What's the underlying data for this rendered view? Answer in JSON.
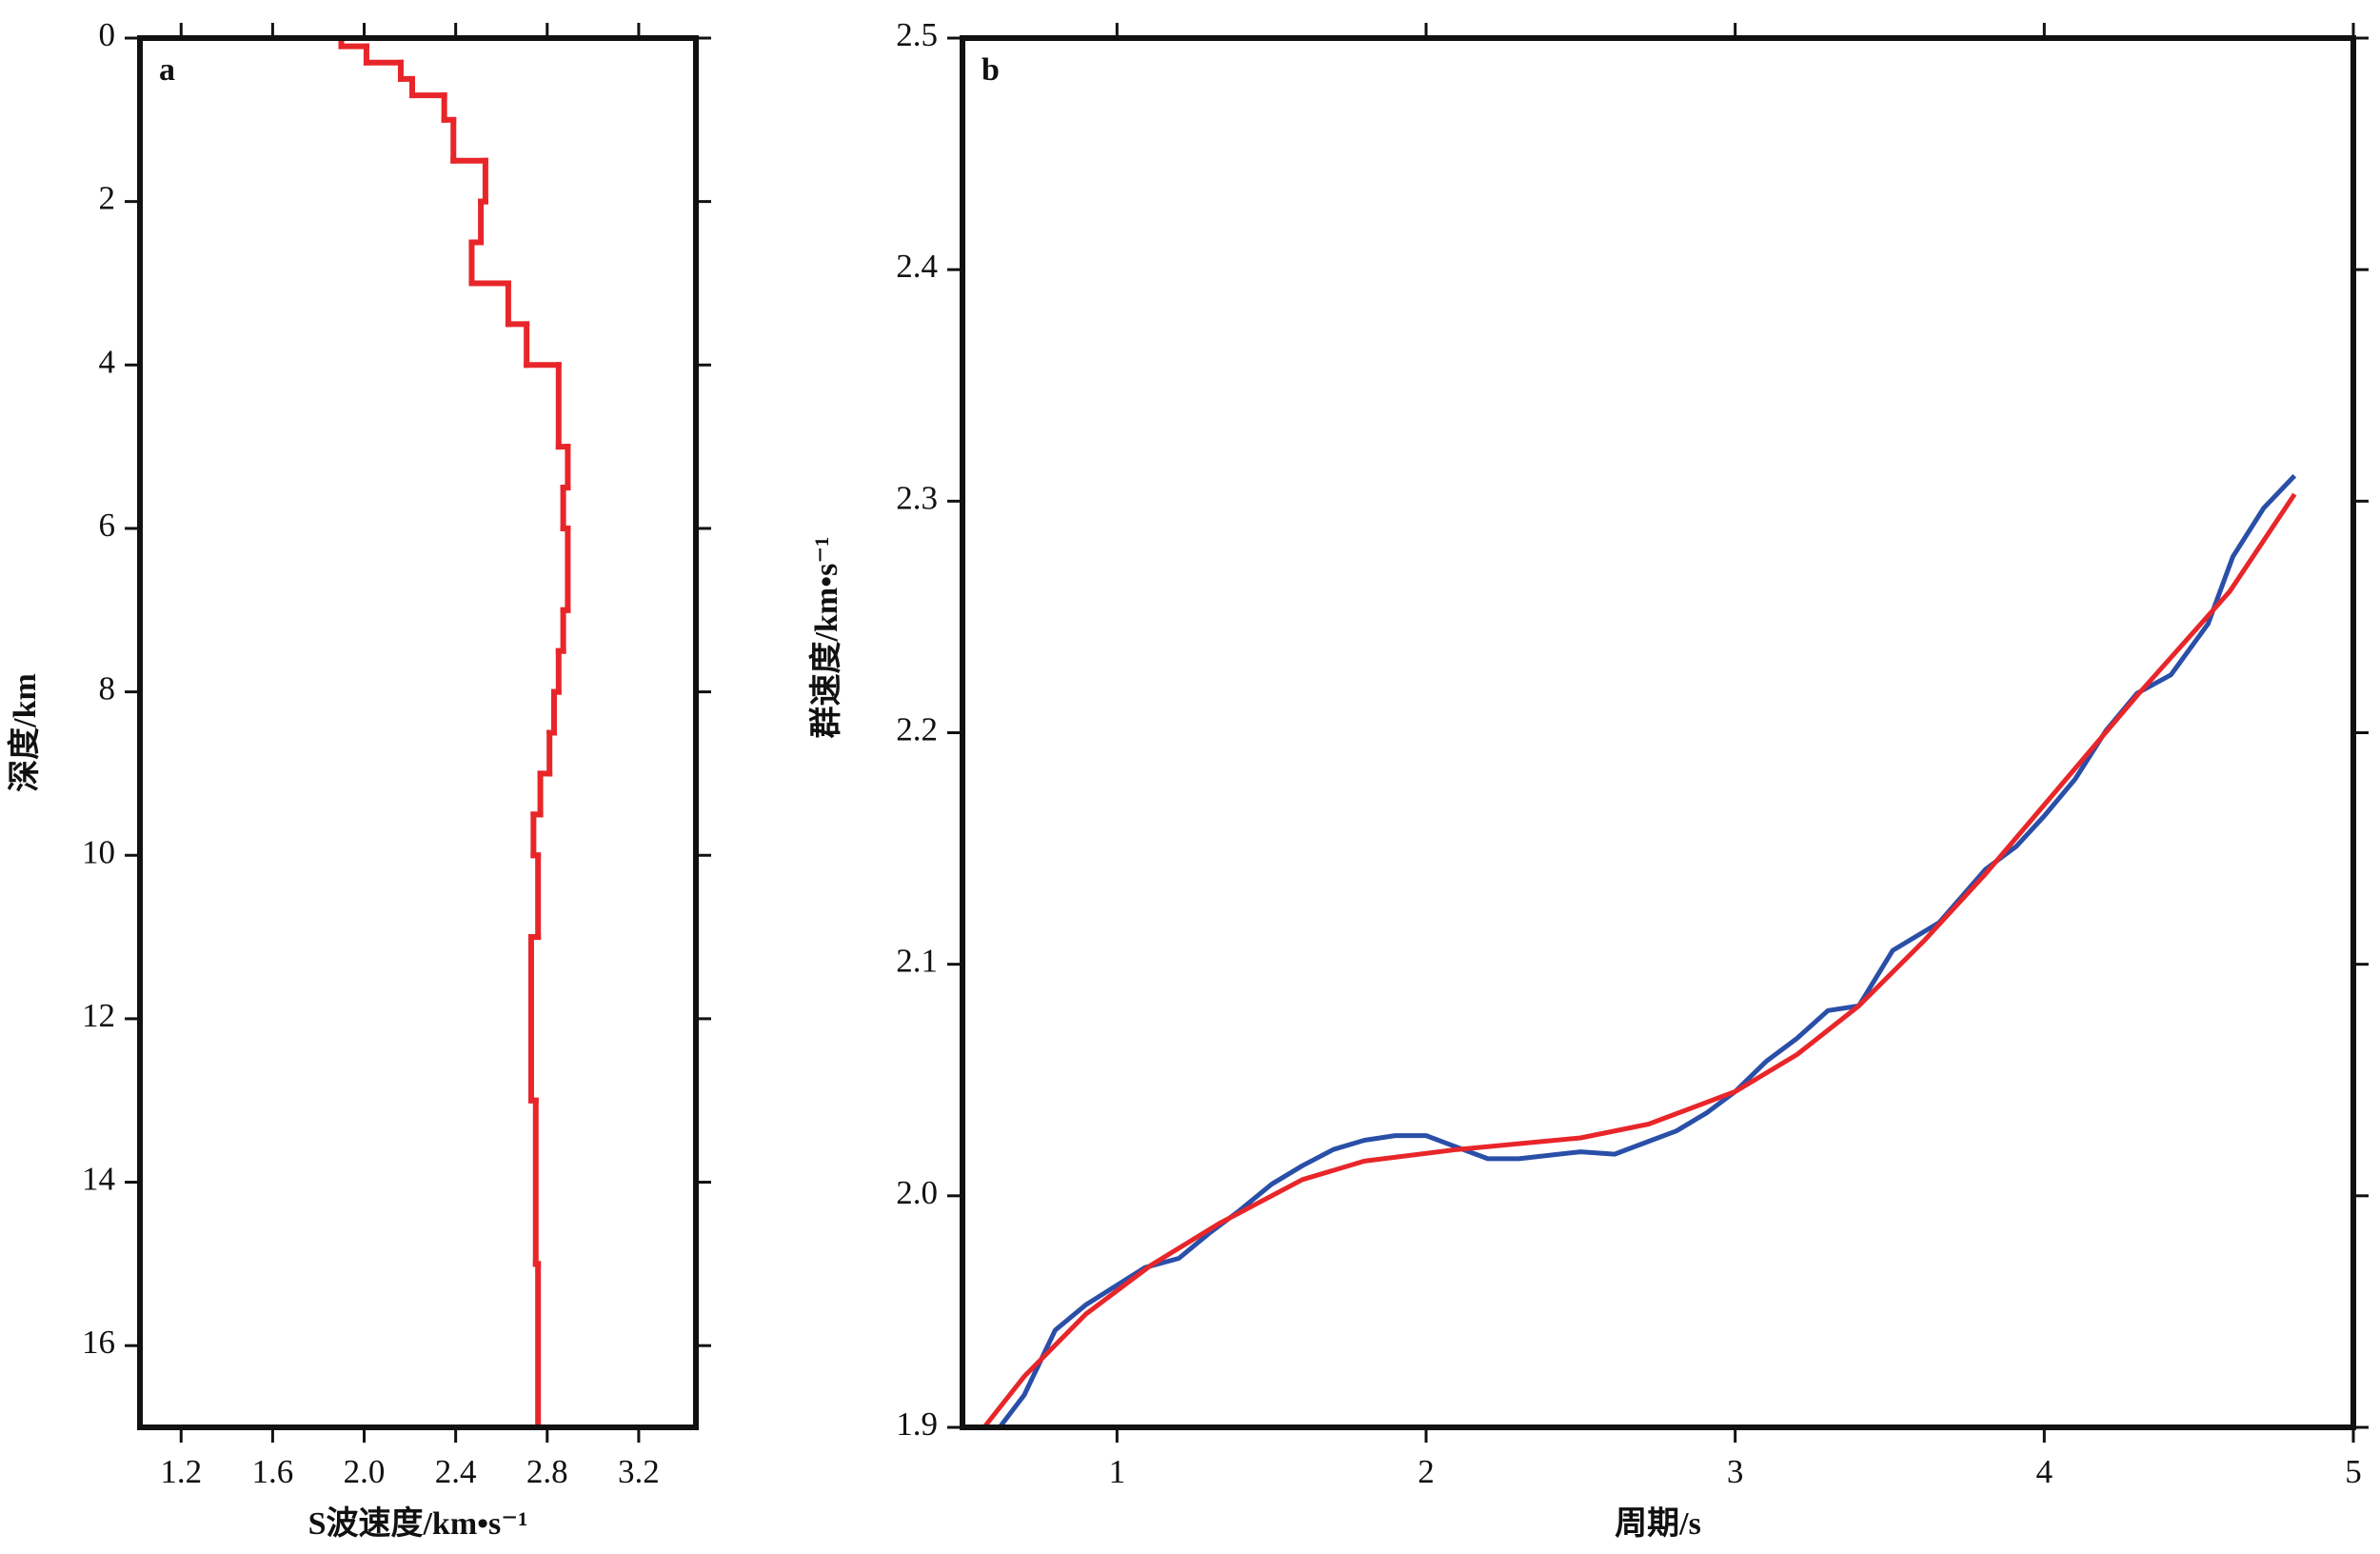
{
  "chart_data": [
    {
      "type": "step",
      "panel_label": "a",
      "xlabel": "S波速度/km•s⁻¹",
      "ylabel": "深度/km",
      "xlim": [
        1.02,
        3.45
      ],
      "xticks": [
        1.2,
        1.6,
        {
          "value": 2.0,
          "label": "2.0"
        },
        2.4,
        2.8,
        3.2
      ],
      "ylim": [
        0,
        17
      ],
      "yticks": [
        0,
        2,
        4,
        6,
        8,
        10,
        12,
        14,
        16
      ],
      "y_inverted": true,
      "series": [
        {
          "color": "#e8262a",
          "depth_edges": [
            0,
            0.1,
            0.3,
            0.5,
            0.7,
            1.0,
            1.5,
            2.0,
            2.5,
            3.0,
            3.5,
            4.0,
            5.0,
            5.5,
            6.0,
            7.0,
            7.5,
            8.0,
            8.5,
            9.0,
            9.5,
            10,
            11,
            13,
            15,
            17
          ],
          "values": [
            1.9,
            2.01,
            2.16,
            2.21,
            2.35,
            2.39,
            2.53,
            2.51,
            2.47,
            2.63,
            2.71,
            2.85,
            2.89,
            2.87,
            2.89,
            2.87,
            2.85,
            2.83,
            2.81,
            2.77,
            2.74,
            2.76,
            2.73,
            2.75,
            2.76
          ]
        }
      ]
    },
    {
      "type": "line",
      "panel_label": "b",
      "xlabel": "周期/s",
      "ylabel": "群速度/km•s⁻¹",
      "xlim": [
        0.5,
        5
      ],
      "xticks": [
        1,
        2,
        3,
        4,
        5
      ],
      "ylim": [
        1.9,
        2.5
      ],
      "yticks": [
        1.9,
        {
          "value": 2.0,
          "label": "2.0"
        },
        2.1,
        2.2,
        2.3,
        2.4,
        2.5
      ],
      "series": [
        {
          "color": "#2a4fa8",
          "x": [
            0.62,
            0.7,
            0.8,
            0.9,
            1.09,
            1.2,
            1.3,
            1.39,
            1.5,
            1.6,
            1.7,
            1.8,
            1.9,
            2.0,
            2.1,
            2.2,
            2.3,
            2.5,
            2.61,
            2.71,
            2.81,
            2.91,
            3.0,
            3.1,
            3.2,
            3.3,
            3.4,
            3.51,
            3.66,
            3.81,
            3.91,
            4.0,
            4.1,
            4.2,
            4.3,
            4.41,
            4.53,
            4.61,
            4.71,
            4.81
          ],
          "values": [
            1.9,
            1.914,
            1.942,
            1.953,
            1.969,
            1.973,
            1.984,
            1.993,
            2.005,
            2.013,
            2.02,
            2.024,
            2.026,
            2.026,
            2.021,
            2.016,
            2.016,
            2.019,
            2.018,
            2.023,
            2.028,
            2.036,
            2.045,
            2.058,
            2.068,
            2.08,
            2.082,
            2.106,
            2.118,
            2.141,
            2.151,
            2.164,
            2.18,
            2.201,
            2.217,
            2.225,
            2.247,
            2.276,
            2.297,
            2.311
          ]
        },
        {
          "color": "#e8262a",
          "x": [
            0.57,
            0.7,
            0.9,
            1.11,
            1.33,
            1.6,
            1.8,
            2.1,
            2.5,
            2.72,
            3.0,
            3.2,
            3.4,
            3.61,
            3.81,
            4.02,
            4.3,
            4.6,
            4.81
          ],
          "values": [
            1.9,
            1.922,
            1.949,
            1.97,
            1.988,
            2.007,
            2.015,
            2.02,
            2.025,
            2.031,
            2.045,
            2.061,
            2.082,
            2.11,
            2.139,
            2.172,
            2.216,
            2.261,
            2.303
          ]
        }
      ]
    }
  ]
}
